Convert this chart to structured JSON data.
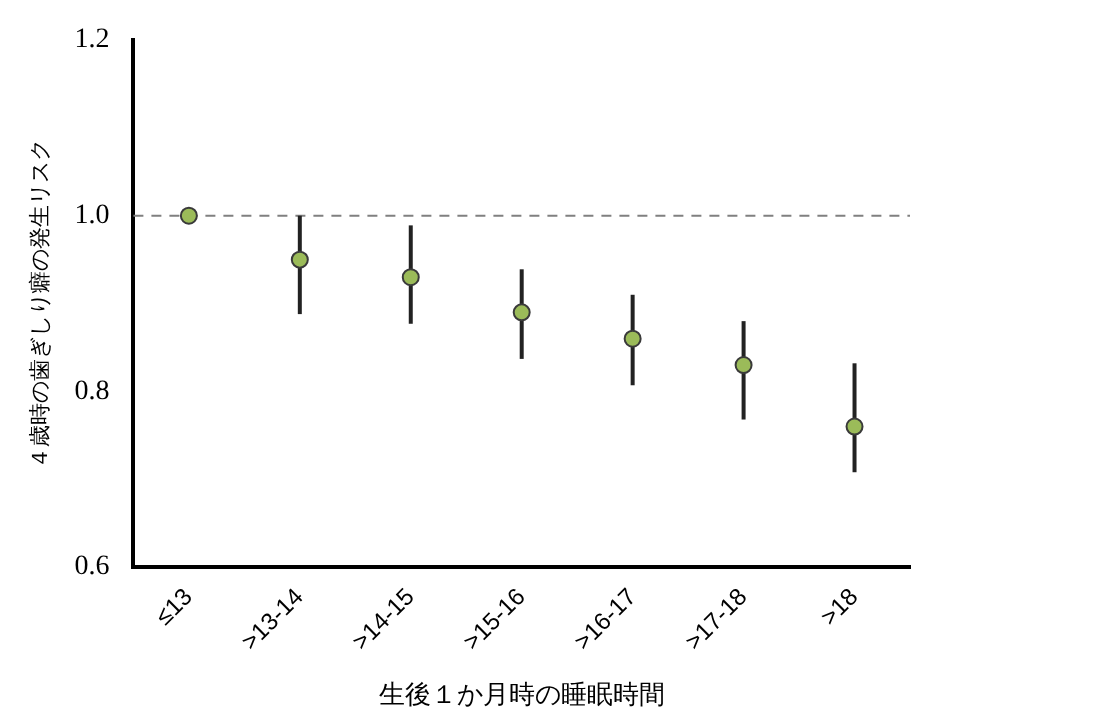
{
  "chart_data": {
    "type": "scatter",
    "xlabel": "生後１か月時の睡眠時間",
    "ylabel": "４歳時の歯ぎしり癖の発生リスク",
    "categories": [
      "≤13",
      ">13-14",
      ">14-15",
      ">15-16",
      ">16-17",
      ">17-18",
      ">18"
    ],
    "series": [
      {
        "color": "#9bbb59",
        "values": [
          1.0,
          0.95,
          0.93,
          0.89,
          0.86,
          0.83,
          0.76
        ],
        "errors": [
          null,
          [
            0.888,
            1.0
          ],
          [
            0.877,
            0.989
          ],
          [
            0.837,
            0.939
          ],
          [
            0.807,
            0.91
          ],
          [
            0.768,
            0.88
          ],
          [
            0.708,
            0.832
          ]
        ]
      }
    ],
    "ylim": [
      0.6,
      1.2
    ],
    "yticks": [
      0.6,
      0.8,
      {
        "value": 1.0,
        "label": "1.0"
      },
      1.2
    ],
    "ref_lines": [
      {
        "axis": "y",
        "value": 1.0,
        "label": null,
        "color": "#808080",
        "line_style": "dashed"
      }
    ],
    "grid": false,
    "legend": false,
    "marker": "circle"
  }
}
